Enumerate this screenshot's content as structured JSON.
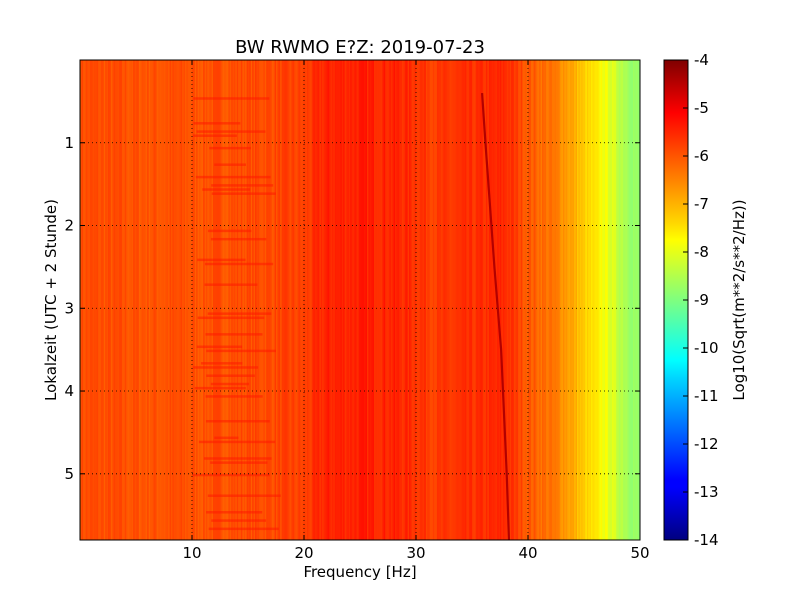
{
  "chart_data": {
    "type": "heatmap",
    "title": "BW RWMO E?Z: 2019-07-23",
    "xlabel": "Frequency [Hz]",
    "ylabel": "Lokalzeit (UTC + 2 Stunde)",
    "xlim": [
      0,
      50
    ],
    "ylim": [
      0,
      5.8
    ],
    "y_inverted": true,
    "x_ticks": [
      "10",
      "20",
      "30",
      "40",
      "50"
    ],
    "x_tick_values": [
      10,
      20,
      30,
      40,
      50
    ],
    "y_ticks": [
      "1",
      "2",
      "3",
      "4",
      "5"
    ],
    "y_tick_values": [
      1,
      2,
      3,
      4,
      5
    ],
    "grid": true,
    "colormap": "jet",
    "colorbar": {
      "label": "Log10(Sqrt(m**2/s**2/Hz))",
      "range": [
        -14,
        -4
      ],
      "ticks": [
        "-4",
        "-5",
        "-6",
        "-7",
        "-8",
        "-9",
        "-10",
        "-11",
        "-12",
        "-13",
        "-14"
      ],
      "tick_values": [
        -4,
        -5,
        -6,
        -7,
        -8,
        -9,
        -10,
        -11,
        -12,
        -13,
        -14
      ]
    },
    "spectral_profile": {
      "frequency_hz": [
        0,
        5,
        10,
        15,
        20,
        22,
        25,
        28,
        30,
        32,
        35,
        38,
        40,
        42,
        43,
        44,
        45,
        46,
        47,
        48,
        49,
        50
      ],
      "log_amplitude": [
        -6.0,
        -6.05,
        -6.05,
        -6.0,
        -5.9,
        -5.6,
        -5.55,
        -5.6,
        -5.7,
        -5.85,
        -5.75,
        -5.65,
        -6.1,
        -6.4,
        -6.6,
        -6.9,
        -7.3,
        -7.6,
        -7.9,
        -8.3,
        -8.6,
        -8.9
      ]
    },
    "line_feature": {
      "frequency_hz": [
        35.9,
        36.2,
        37.0,
        37.6,
        38.1,
        38.3
      ],
      "time": [
        0.4,
        1.0,
        2.5,
        3.5,
        5.0,
        5.8
      ],
      "log_amplitude": -4.5
    }
  }
}
